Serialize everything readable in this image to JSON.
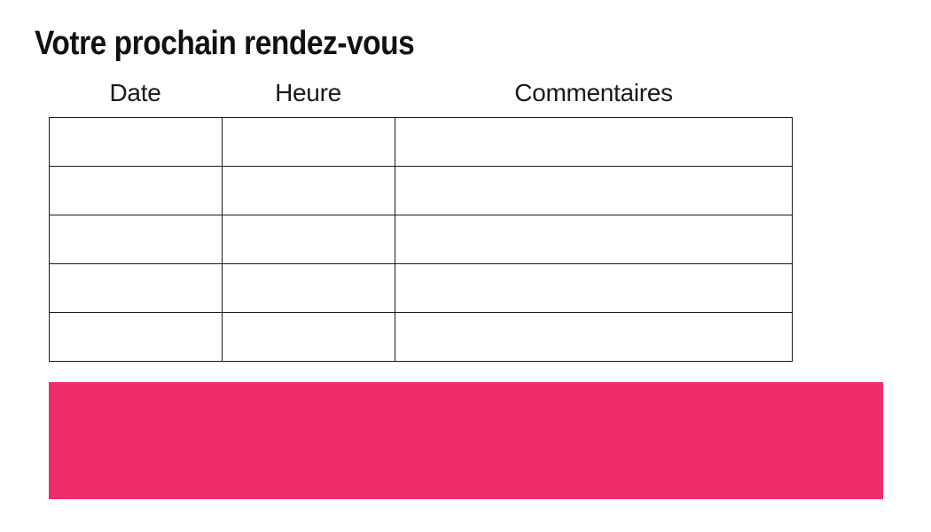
{
  "page": {
    "title": "Votre prochain rendez-vous"
  },
  "table": {
    "headers": [
      "Date",
      "Heure",
      "Commentaires"
    ],
    "rows": [
      [
        "",
        "",
        ""
      ],
      [
        "",
        "",
        ""
      ],
      [
        "",
        "",
        ""
      ],
      [
        "",
        "",
        ""
      ],
      [
        "",
        "",
        ""
      ]
    ],
    "border_color": "#1b1b1b"
  },
  "highlight_band": {
    "color": "#ee2d68"
  },
  "colors": {
    "background": "#ffffff",
    "text": "#1a1a1a",
    "accent_pink": "#ee2d68"
  }
}
